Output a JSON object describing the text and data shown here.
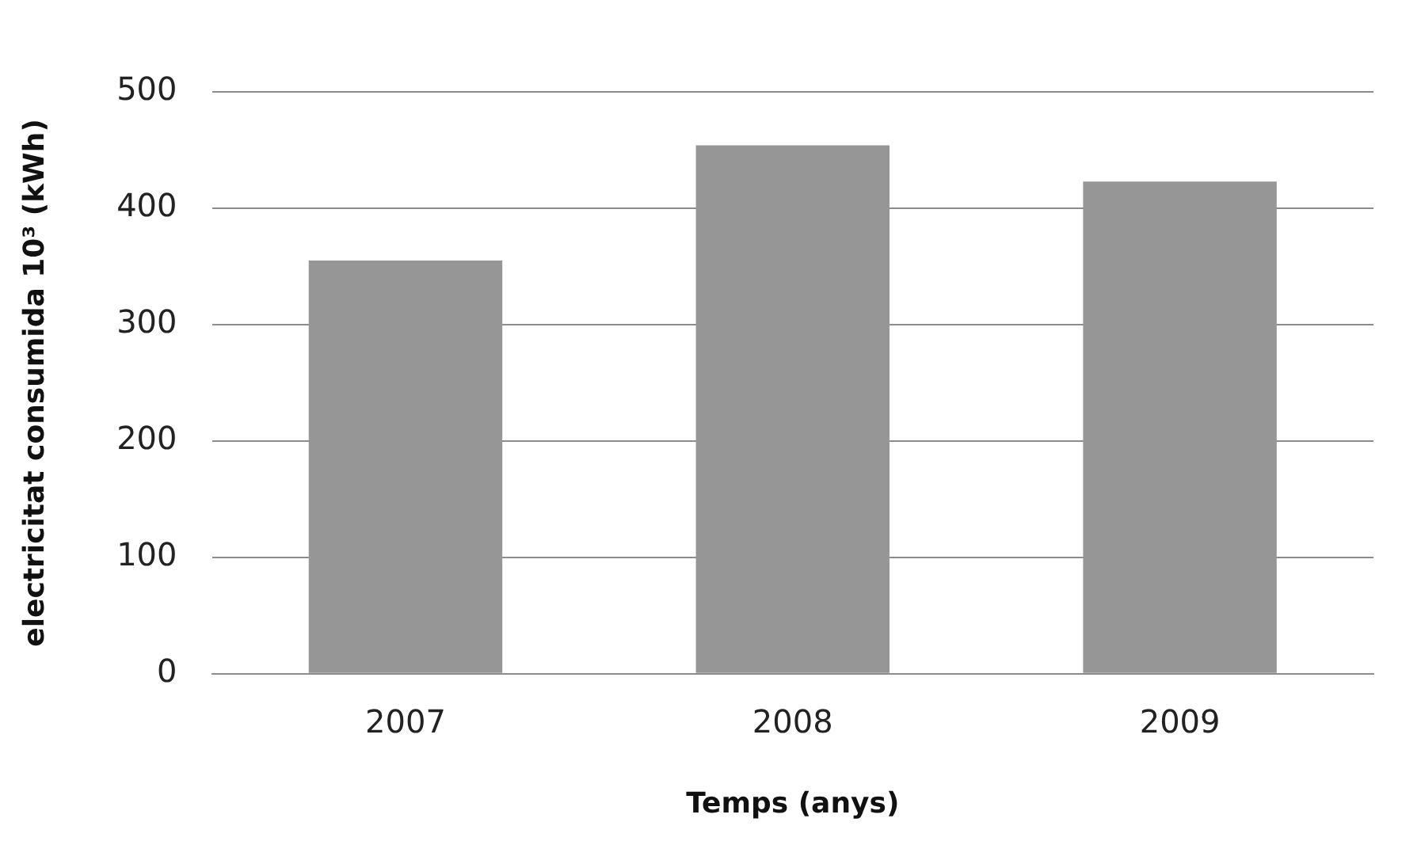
{
  "chart_data": {
    "type": "bar",
    "xlabel": "Temps (anys)",
    "ylabel": "electricitat consumida 10³ (kWh)",
    "categories": [
      "2007",
      "2008",
      "2009"
    ],
    "values": [
      355,
      454,
      423
    ],
    "color": "#969696",
    "ylim": [
      0,
      500
    ],
    "yticks": [
      0,
      100,
      200,
      300,
      400,
      500
    ],
    "grid": "y",
    "legend": false
  }
}
